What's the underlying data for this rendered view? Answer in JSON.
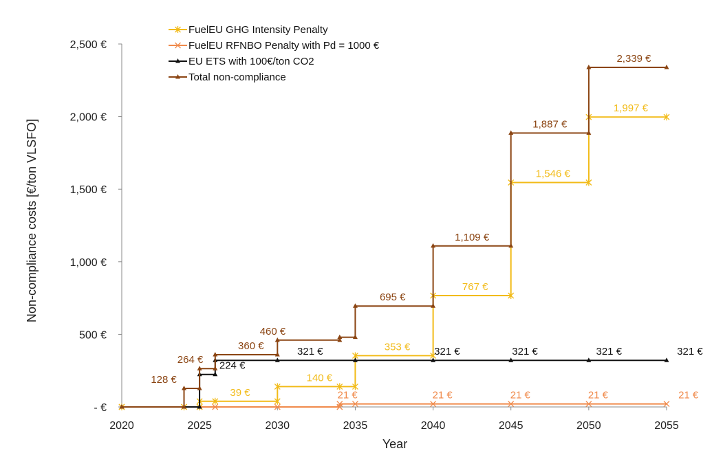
{
  "chart_data": {
    "type": "line",
    "step": true,
    "title": "",
    "xlabel": "Year",
    "ylabel": "Non-compliance costs  [€/ton VLSFO]",
    "xlim": [
      2020,
      2055
    ],
    "ylim": [
      0,
      2500
    ],
    "x_ticks": [
      2020,
      2025,
      2030,
      2035,
      2040,
      2045,
      2050,
      2055
    ],
    "y_ticks": [
      0,
      500,
      1000,
      1500,
      2000,
      2500
    ],
    "y_tick_labels": [
      "-  €",
      "500 €",
      "1,000 €",
      "1,500 €",
      "2,000 €",
      "2,500 €"
    ],
    "grid": false,
    "legend_position": "top-left",
    "series": [
      {
        "name": "FuelEU GHG Intensity Penalty",
        "color": "#F2BB18",
        "marker": "asterisk",
        "points": [
          [
            2020,
            0
          ],
          [
            2024,
            0
          ],
          [
            2025,
            0
          ],
          [
            2025,
            39
          ],
          [
            2026,
            39
          ],
          [
            2030,
            39
          ],
          [
            2030,
            140
          ],
          [
            2034,
            140
          ],
          [
            2035,
            140
          ],
          [
            2035,
            353
          ],
          [
            2040,
            353
          ],
          [
            2040,
            767
          ],
          [
            2045,
            767
          ],
          [
            2045,
            1546
          ],
          [
            2050,
            1546
          ],
          [
            2050,
            1997
          ],
          [
            2055,
            1997
          ]
        ],
        "labels": [
          {
            "x": 2027.6,
            "y": 39,
            "text": "39 €"
          },
          {
            "x": 2032.7,
            "y": 140,
            "text": "140 €"
          },
          {
            "x": 2037.7,
            "y": 353,
            "text": "353 €"
          },
          {
            "x": 2042.7,
            "y": 767,
            "text": "767 €"
          },
          {
            "x": 2047.7,
            "y": 1546,
            "text": "1,546 €"
          },
          {
            "x": 2052.7,
            "y": 1997,
            "text": "1,997 €"
          }
        ]
      },
      {
        "name": "FuelEU RFNBO Penalty with Pd = 1000 €",
        "color": "#F08A4B",
        "marker": "x",
        "points": [
          [
            2020,
            0
          ],
          [
            2024,
            0
          ],
          [
            2025,
            0
          ],
          [
            2026,
            0
          ],
          [
            2030,
            0
          ],
          [
            2034,
            0
          ],
          [
            2034,
            21
          ],
          [
            2035,
            21
          ],
          [
            2040,
            21
          ],
          [
            2045,
            21
          ],
          [
            2050,
            21
          ],
          [
            2055,
            21
          ]
        ],
        "labels": [
          {
            "x": 2034.5,
            "y": 21,
            "text": "21 €"
          },
          {
            "x": 2040.6,
            "y": 21,
            "text": "21 €"
          },
          {
            "x": 2045.6,
            "y": 21,
            "text": "21 €"
          },
          {
            "x": 2050.6,
            "y": 21,
            "text": "21 €"
          },
          {
            "x": 2056.4,
            "y": 21,
            "text": "21 €"
          }
        ]
      },
      {
        "name": "EU ETS with 100€/ton CO2",
        "color": "#111111",
        "marker": "triangle",
        "points": [
          [
            2020,
            0
          ],
          [
            2024,
            0
          ],
          [
            2025,
            0
          ],
          [
            2025,
            224
          ],
          [
            2026,
            224
          ],
          [
            2026,
            321
          ],
          [
            2030,
            321
          ],
          [
            2035,
            321
          ],
          [
            2040,
            321
          ],
          [
            2045,
            321
          ],
          [
            2050,
            321
          ],
          [
            2055,
            321
          ]
        ],
        "labels": [
          {
            "x": 2027.1,
            "y": 224,
            "text": "224 €"
          },
          {
            "x": 2032.1,
            "y": 321,
            "text": "321 €"
          },
          {
            "x": 2040.9,
            "y": 321,
            "text": "321 €"
          },
          {
            "x": 2045.9,
            "y": 321,
            "text": "321 €"
          },
          {
            "x": 2051.3,
            "y": 321,
            "text": "321 €"
          },
          {
            "x": 2056.5,
            "y": 321,
            "text": "321 €"
          }
        ]
      },
      {
        "name": "Total non-compliance",
        "color": "#8B4513",
        "marker": "triangle",
        "points": [
          [
            2020,
            0
          ],
          [
            2024,
            0
          ],
          [
            2024,
            128
          ],
          [
            2025,
            128
          ],
          [
            2025,
            264
          ],
          [
            2026,
            264
          ],
          [
            2026,
            360
          ],
          [
            2030,
            360
          ],
          [
            2030,
            460
          ],
          [
            2034,
            460
          ],
          [
            2034,
            480
          ],
          [
            2035,
            480
          ],
          [
            2035,
            695
          ],
          [
            2040,
            695
          ],
          [
            2040,
            1109
          ],
          [
            2045,
            1109
          ],
          [
            2045,
            1887
          ],
          [
            2050,
            1887
          ],
          [
            2050,
            2339
          ],
          [
            2055,
            2339
          ]
        ],
        "labels": [
          {
            "x": 2022.7,
            "y": 128,
            "text": "128 €"
          },
          {
            "x": 2024.4,
            "y": 264,
            "text": "264 €"
          },
          {
            "x": 2028.3,
            "y": 360,
            "text": "360 €"
          },
          {
            "x": 2029.7,
            "y": 460,
            "text": "460 €"
          },
          {
            "x": 2037.4,
            "y": 695,
            "text": "695 €"
          },
          {
            "x": 2042.5,
            "y": 1109,
            "text": "1,109 €"
          },
          {
            "x": 2047.5,
            "y": 1887,
            "text": "1,887 €"
          },
          {
            "x": 2052.9,
            "y": 2339,
            "text": "2,339 €"
          }
        ]
      }
    ]
  }
}
